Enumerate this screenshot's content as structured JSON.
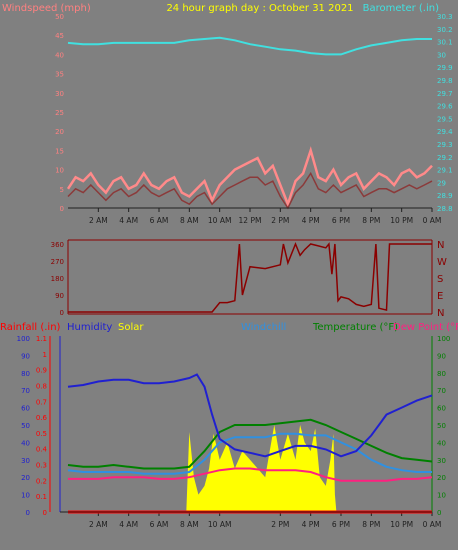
{
  "title": "24 hour graph day : October 31 2021",
  "colors": {
    "background": "#808080",
    "wind_label": "#ff8080",
    "wind_gust": "#ff8a8a",
    "wind_speed": "#8b3a3a",
    "barometer": "#40e0e0",
    "title": "#ffff00",
    "direction": "#8b0000",
    "rainfall": "#ff0000",
    "humidity": "#2020d0",
    "solar": "#ffff00",
    "windchill": "#3090e0",
    "temperature": "#008000",
    "dewpoint": "#ff2080",
    "dark": "#202020"
  },
  "chart_data": [
    {
      "id": "wind-baro",
      "type": "line",
      "title": "24 hour graph day : October 31 2021",
      "ylabel_left": "Windspeed (mph)",
      "ylabel_right": "Barometer (.in)",
      "y_left_range": [
        0,
        50
      ],
      "y_left_ticks": [
        "0",
        "5",
        "10",
        "15",
        "20",
        "25",
        "30",
        "35",
        "40",
        "45",
        "50"
      ],
      "y_right_range": [
        28.8,
        30.3
      ],
      "y_right_ticks": [
        "28.8",
        "28.9",
        "29",
        "29.1",
        "29.2",
        "29.3",
        "29.4",
        "29.5",
        "29.6",
        "29.7",
        "29.8",
        "29.9",
        "30",
        "30.1",
        "30.2",
        "30.3"
      ],
      "x_ticks": [
        "2 AM",
        "4 AM",
        "6 AM",
        "8 AM",
        "10 AM",
        "12 PM",
        "2 PM",
        "4 PM",
        "6 PM",
        "8 PM",
        "10 PM",
        "0 AM"
      ],
      "series": [
        {
          "key": "barometer",
          "axis": "right",
          "x": [
            0,
            1,
            2,
            3,
            4,
            5,
            6,
            7,
            8,
            9,
            10,
            11,
            12,
            13,
            14,
            15,
            16,
            17,
            18,
            19,
            20,
            21,
            22,
            23,
            24
          ],
          "values": [
            30.09,
            30.08,
            30.08,
            30.09,
            30.09,
            30.09,
            30.09,
            30.09,
            30.11,
            30.12,
            30.13,
            30.11,
            30.08,
            30.06,
            30.04,
            30.03,
            30.01,
            30.0,
            30.0,
            30.04,
            30.07,
            30.09,
            30.11,
            30.12,
            30.12
          ]
        },
        {
          "key": "gust",
          "axis": "left",
          "x": [
            0,
            0.5,
            1,
            1.5,
            2,
            2.5,
            3,
            3.5,
            4,
            4.5,
            5,
            5.5,
            6,
            6.5,
            7,
            7.5,
            8,
            8.5,
            9,
            9.5,
            10,
            10.5,
            11,
            11.5,
            12,
            12.5,
            13,
            13.5,
            14,
            14.5,
            15,
            15.5,
            16,
            16.5,
            17,
            17.5,
            18,
            18.5,
            19,
            19.5,
            20,
            20.5,
            21,
            21.5,
            22,
            22.5,
            23,
            23.5,
            24
          ],
          "values": [
            5,
            8,
            7,
            9,
            6,
            4,
            7,
            8,
            5,
            6,
            9,
            6,
            5,
            7,
            8,
            4,
            3,
            5,
            7,
            2,
            6,
            8,
            10,
            11,
            12,
            13,
            9,
            11,
            6,
            1,
            7,
            9,
            15,
            8,
            7,
            10,
            6,
            8,
            9,
            5,
            7,
            9,
            8,
            6,
            9,
            10,
            8,
            9,
            11
          ]
        },
        {
          "key": "speed",
          "axis": "left",
          "x": [
            0,
            0.5,
            1,
            1.5,
            2,
            2.5,
            3,
            3.5,
            4,
            4.5,
            5,
            5.5,
            6,
            6.5,
            7,
            7.5,
            8,
            8.5,
            9,
            9.5,
            10,
            10.5,
            11,
            11.5,
            12,
            12.5,
            13,
            13.5,
            14,
            14.5,
            15,
            15.5,
            16,
            16.5,
            17,
            17.5,
            18,
            18.5,
            19,
            19.5,
            20,
            20.5,
            21,
            21.5,
            22,
            22.5,
            23,
            23.5,
            24
          ],
          "values": [
            3,
            5,
            4,
            6,
            4,
            2,
            4,
            5,
            3,
            4,
            6,
            4,
            3,
            4,
            5,
            2,
            1,
            3,
            4,
            1,
            3,
            5,
            6,
            7,
            8,
            8,
            6,
            7,
            3,
            0,
            4,
            6,
            9,
            5,
            4,
            6,
            4,
            5,
            6,
            3,
            4,
            5,
            5,
            4,
            5,
            6,
            5,
            6,
            7
          ]
        }
      ]
    },
    {
      "id": "direction",
      "type": "line",
      "y_left_range": [
        0,
        360
      ],
      "y_left_ticks": [
        "0",
        "90",
        "180",
        "270",
        "360"
      ],
      "y_right_labels": [
        "N",
        "W",
        "S",
        "E",
        "N"
      ],
      "series": [
        {
          "key": "direction",
          "x": [
            0,
            2,
            4,
            6,
            8,
            9.5,
            10,
            10.5,
            11,
            11.3,
            11.5,
            12,
            13,
            14,
            14.2,
            14.5,
            15,
            15.3,
            15.6,
            16,
            16.5,
            17,
            17.2,
            17.4,
            17.6,
            17.8,
            18,
            18.5,
            19,
            19.5,
            20,
            20.3,
            20.5,
            21,
            21.2,
            21.5,
            22,
            23,
            24
          ],
          "values": [
            0,
            0,
            0,
            0,
            0,
            0,
            50,
            50,
            60,
            360,
            90,
            240,
            230,
            250,
            360,
            260,
            360,
            300,
            330,
            360,
            350,
            340,
            360,
            200,
            360,
            60,
            80,
            70,
            40,
            30,
            40,
            360,
            20,
            10,
            360,
            360,
            360,
            360,
            360
          ]
        }
      ]
    },
    {
      "id": "multi",
      "type": "line",
      "labels": {
        "rainfall": "Rainfall (.in)",
        "humidity": "Humidity",
        "solar": "Solar",
        "windchill": "Windchill",
        "temperature": "Temperature (°F)",
        "dewpoint": "Dew Point (°F"
      },
      "y_rain_range": [
        0,
        1.1
      ],
      "y_rain_ticks": [
        "0",
        "0.1",
        "0.2",
        "0.3",
        "0.4",
        "0.5",
        "0.6",
        "0.7",
        "0.8",
        "0.9",
        "1",
        "1.1"
      ],
      "y_hum_range": [
        0,
        100
      ],
      "y_hum_ticks": [
        "0",
        "10",
        "20",
        "30",
        "40",
        "50",
        "60",
        "70",
        "80",
        "90",
        "100"
      ],
      "y_temp_range": [
        0,
        100
      ],
      "y_temp_ticks": [
        "0",
        "10",
        "20",
        "30",
        "40",
        "50",
        "60",
        "70",
        "80",
        "90",
        "100"
      ],
      "x_ticks": [
        "2 AM",
        "4 AM",
        "6 AM",
        "8 AM",
        "10 AM",
        "2 PM",
        "4 PM",
        "6 PM",
        "8 PM",
        "10 PM",
        "0 AM"
      ],
      "series": [
        {
          "key": "humidity",
          "x": [
            0,
            1,
            2,
            3,
            4,
            5,
            6,
            7,
            8,
            8.5,
            9,
            9.5,
            10,
            11,
            12,
            13,
            14,
            15,
            16,
            17,
            18,
            19,
            20,
            21,
            22,
            23,
            24
          ],
          "values": [
            72,
            73,
            75,
            76,
            76,
            74,
            74,
            75,
            77,
            79,
            72,
            56,
            42,
            36,
            34,
            32,
            35,
            38,
            38,
            36,
            32,
            35,
            44,
            56,
            60,
            64,
            67
          ],
          "axis": "hum"
        },
        {
          "key": "windchill",
          "x": [
            0,
            1,
            2,
            3,
            4,
            5,
            6,
            7,
            8,
            9,
            10,
            11,
            12,
            13,
            14,
            15,
            16,
            17,
            18,
            19,
            20,
            21,
            22,
            23,
            24
          ],
          "values": [
            24,
            23,
            23,
            23,
            23,
            22,
            22,
            22,
            23,
            30,
            40,
            43,
            43,
            43,
            45,
            45,
            44,
            44,
            40,
            36,
            30,
            26,
            24,
            23,
            23
          ],
          "axis": "temp"
        },
        {
          "key": "temperature",
          "x": [
            0,
            1,
            2,
            3,
            4,
            5,
            6,
            7,
            8,
            9,
            10,
            11,
            12,
            13,
            14,
            15,
            16,
            17,
            18,
            19,
            20,
            21,
            22,
            23,
            24
          ],
          "values": [
            27,
            26,
            26,
            27,
            26,
            25,
            25,
            25,
            26,
            35,
            46,
            50,
            50,
            50,
            51,
            52,
            53,
            50,
            46,
            42,
            38,
            34,
            31,
            30,
            29
          ],
          "axis": "temp"
        },
        {
          "key": "dewpoint",
          "x": [
            0,
            1,
            2,
            3,
            4,
            5,
            6,
            7,
            8,
            9,
            10,
            11,
            12,
            13,
            14,
            15,
            16,
            17,
            18,
            19,
            20,
            21,
            22,
            23,
            24
          ],
          "values": [
            19,
            19,
            19,
            20,
            20,
            20,
            19,
            19,
            20,
            22,
            24,
            25,
            25,
            24,
            24,
            24,
            23,
            20,
            18,
            18,
            18,
            18,
            19,
            19,
            20
          ],
          "axis": "temp"
        },
        {
          "key": "solar",
          "x": [
            7.8,
            8,
            8.3,
            8.6,
            9,
            9.3,
            9.6,
            10,
            10.5,
            11,
            11.5,
            12,
            12.5,
            13,
            13.3,
            13.6,
            14,
            14.5,
            15,
            15.3,
            15.6,
            16,
            16.3,
            16.6,
            17,
            17.3,
            17.5,
            17.6,
            17.7
          ],
          "values": [
            0,
            46,
            20,
            10,
            15,
            25,
            45,
            30,
            40,
            25,
            35,
            30,
            25,
            20,
            35,
            50,
            30,
            45,
            30,
            50,
            40,
            35,
            48,
            20,
            15,
            30,
            45,
            10,
            0
          ],
          "axis": "hum"
        },
        {
          "key": "rainfall",
          "x": [
            0,
            24
          ],
          "values": [
            0,
            0
          ],
          "axis": "rain"
        }
      ]
    }
  ]
}
